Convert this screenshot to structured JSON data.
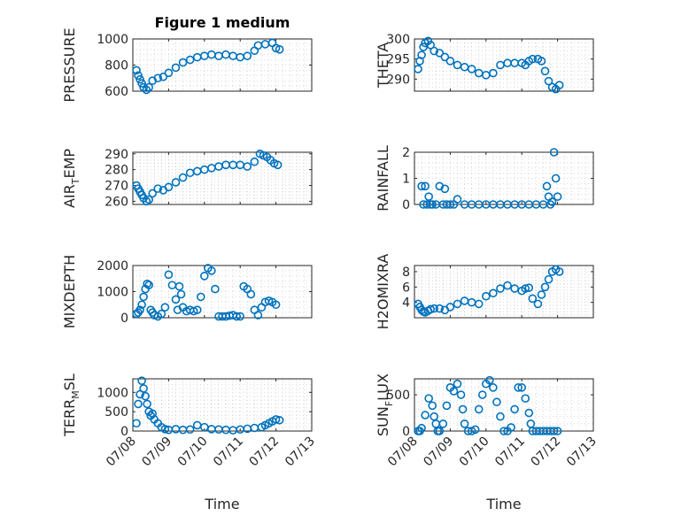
{
  "title": "Figure 1 medium",
  "colors": {
    "series": "#0072bd",
    "axis": "#262626"
  },
  "chart_data": [
    {
      "type": "scatter",
      "ylabel_main": "PRESSURE",
      "ylabel_sub": "",
      "ylabel_end": "",
      "ylim": [
        600,
        1000
      ],
      "yticks": [
        600,
        800,
        1000
      ],
      "xlim": [
        0,
        5
      ],
      "x": [
        0.1,
        0.15,
        0.2,
        0.25,
        0.3,
        0.38,
        0.45,
        0.55,
        0.7,
        0.85,
        1.0,
        1.2,
        1.4,
        1.6,
        1.8,
        2.0,
        2.2,
        2.4,
        2.6,
        2.8,
        3.0,
        3.2,
        3.4,
        3.5,
        3.7,
        3.9,
        4.0,
        4.1
      ],
      "y": [
        760,
        720,
        690,
        660,
        630,
        610,
        630,
        680,
        700,
        710,
        740,
        780,
        820,
        840,
        860,
        870,
        880,
        870,
        880,
        870,
        860,
        870,
        910,
        950,
        960,
        970,
        930,
        920
      ],
      "grid": true
    },
    {
      "type": "scatter",
      "ylabel_main": "THETA",
      "ylabel_sub": "",
      "ylabel_end": "",
      "ylim": [
        287,
        300
      ],
      "yticks": [
        290,
        295,
        300
      ],
      "xlim": [
        0,
        5
      ],
      "x": [
        0.1,
        0.15,
        0.2,
        0.25,
        0.3,
        0.38,
        0.45,
        0.55,
        0.7,
        0.85,
        1.0,
        1.2,
        1.4,
        1.6,
        1.8,
        2.0,
        2.2,
        2.4,
        2.6,
        2.8,
        3.0,
        3.1,
        3.2,
        3.3,
        3.45,
        3.55,
        3.65,
        3.75,
        3.85,
        3.95,
        4.05
      ],
      "y": [
        292.5,
        294.5,
        296,
        298,
        299,
        299.5,
        298.5,
        297,
        296.5,
        295.5,
        294.5,
        293.5,
        293,
        292.5,
        291.5,
        291,
        291.5,
        293.5,
        294,
        294,
        294,
        293.5,
        294.5,
        295,
        295,
        294.5,
        292,
        289.5,
        288,
        287.5,
        288.5
      ],
      "grid": true
    },
    {
      "type": "scatter",
      "ylabel_main": "AIR",
      "ylabel_sub": "T",
      "ylabel_end": "EMP",
      "ylim": [
        258,
        291
      ],
      "yticks": [
        260,
        270,
        280,
        290
      ],
      "xlim": [
        0,
        5
      ],
      "x": [
        0.1,
        0.15,
        0.2,
        0.25,
        0.3,
        0.38,
        0.45,
        0.55,
        0.7,
        0.85,
        1.0,
        1.2,
        1.4,
        1.6,
        1.8,
        2.0,
        2.2,
        2.4,
        2.6,
        2.8,
        3.0,
        3.2,
        3.4,
        3.55,
        3.65,
        3.75,
        3.85,
        3.95,
        4.05
      ],
      "y": [
        270,
        268,
        266,
        264,
        262,
        260,
        261,
        265,
        268,
        267,
        269,
        272,
        275,
        278,
        279,
        280,
        281,
        282,
        283,
        283,
        283,
        282,
        285,
        290,
        289,
        288,
        286,
        284,
        283
      ],
      "grid": true
    },
    {
      "type": "scatter",
      "ylabel_main": "RAINFALL",
      "ylabel_sub": "",
      "ylabel_end": "",
      "ylim": [
        0,
        2
      ],
      "yticks": [
        0,
        1,
        2
      ],
      "xlim": [
        0,
        5
      ],
      "x": [
        0.2,
        0.25,
        0.3,
        0.35,
        0.4,
        0.45,
        0.5,
        0.6,
        0.7,
        0.8,
        0.85,
        0.9,
        1.0,
        1.1,
        1.2,
        1.4,
        1.6,
        1.8,
        2.0,
        2.2,
        2.4,
        2.6,
        2.8,
        3.0,
        3.2,
        3.4,
        3.6,
        3.7,
        3.75,
        3.8,
        3.85,
        3.9,
        3.95,
        4.0
      ],
      "y": [
        0.7,
        0,
        0.7,
        0,
        0.3,
        0,
        0,
        0,
        0.7,
        0,
        0.6,
        0,
        0,
        0,
        0.2,
        0,
        0,
        0,
        0,
        0,
        0,
        0,
        0,
        0,
        0,
        0,
        0,
        0.7,
        0.3,
        0,
        0.1,
        2.0,
        1.0,
        0.3
      ],
      "grid": true
    },
    {
      "type": "scatter",
      "ylabel_main": "MIXDEPTH",
      "ylabel_sub": "",
      "ylabel_end": "",
      "ylim": [
        0,
        2000
      ],
      "yticks": [
        0,
        1000,
        2000
      ],
      "xlim": [
        0,
        5
      ],
      "x": [
        0.1,
        0.15,
        0.2,
        0.25,
        0.3,
        0.35,
        0.4,
        0.45,
        0.5,
        0.55,
        0.6,
        0.7,
        0.8,
        0.9,
        1.0,
        1.1,
        1.2,
        1.25,
        1.3,
        1.35,
        1.4,
        1.5,
        1.6,
        1.7,
        1.8,
        1.9,
        2.0,
        2.1,
        2.2,
        2.3,
        2.4,
        2.5,
        2.6,
        2.7,
        2.8,
        2.9,
        3.0,
        3.1,
        3.2,
        3.3,
        3.4,
        3.5,
        3.6,
        3.7,
        3.8,
        3.9,
        4.0
      ],
      "y": [
        150,
        200,
        300,
        500,
        800,
        1100,
        1300,
        1250,
        300,
        200,
        100,
        50,
        150,
        400,
        1650,
        1250,
        700,
        300,
        1200,
        900,
        400,
        250,
        300,
        250,
        300,
        800,
        1600,
        1900,
        1800,
        1100,
        50,
        50,
        50,
        80,
        100,
        50,
        50,
        1200,
        1100,
        900,
        300,
        100,
        400,
        600,
        650,
        600,
        500
      ],
      "grid": true
    },
    {
      "type": "scatter",
      "ylabel_main": "H2OMIXRA",
      "ylabel_sub": "",
      "ylabel_end": "",
      "ylim": [
        2,
        8.8
      ],
      "yticks": [
        4,
        6,
        8
      ],
      "xlim": [
        0,
        5
      ],
      "x": [
        0.1,
        0.15,
        0.2,
        0.25,
        0.3,
        0.38,
        0.45,
        0.55,
        0.7,
        0.85,
        1.0,
        1.2,
        1.4,
        1.6,
        1.8,
        2.0,
        2.2,
        2.4,
        2.6,
        2.8,
        3.0,
        3.1,
        3.2,
        3.3,
        3.45,
        3.55,
        3.65,
        3.75,
        3.85,
        3.95,
        4.05
      ],
      "y": [
        3.8,
        3.4,
        3.0,
        2.8,
        2.7,
        2.9,
        3.1,
        3.2,
        3.2,
        3.0,
        3.4,
        3.8,
        4.2,
        4.0,
        3.8,
        4.8,
        5.2,
        5.8,
        6.2,
        5.8,
        5.5,
        5.8,
        5.9,
        4.5,
        3.8,
        5.0,
        6.0,
        7.0,
        8.0,
        8.3,
        8.0
      ],
      "grid": true
    },
    {
      "type": "scatter",
      "ylabel_main": "TERR",
      "ylabel_sub": "M",
      "ylabel_end": "SL",
      "ylim": [
        0,
        1350
      ],
      "yticks": [
        0,
        500,
        1000
      ],
      "xlim": [
        0,
        5
      ],
      "x": [
        0.1,
        0.15,
        0.2,
        0.25,
        0.3,
        0.35,
        0.4,
        0.45,
        0.5,
        0.55,
        0.6,
        0.7,
        0.8,
        0.9,
        1.0,
        1.2,
        1.4,
        1.6,
        1.8,
        2.0,
        2.2,
        2.4,
        2.6,
        2.8,
        3.0,
        3.2,
        3.4,
        3.6,
        3.7,
        3.8,
        3.9,
        4.0,
        4.1
      ],
      "y": [
        200,
        700,
        950,
        1300,
        1100,
        900,
        700,
        500,
        400,
        450,
        300,
        200,
        100,
        50,
        30,
        50,
        30,
        40,
        150,
        100,
        50,
        40,
        30,
        20,
        40,
        60,
        80,
        100,
        150,
        200,
        250,
        300,
        280
      ],
      "grid": true
    },
    {
      "type": "scatter",
      "ylabel_main": "SUN",
      "ylabel_sub": "F",
      "ylabel_end": "LUX",
      "ylim": [
        0,
        720
      ],
      "yticks": [
        0,
        500
      ],
      "xlim": [
        0,
        5
      ],
      "x": [
        0.1,
        0.15,
        0.2,
        0.3,
        0.4,
        0.5,
        0.55,
        0.6,
        0.65,
        0.7,
        0.8,
        0.9,
        1.0,
        1.1,
        1.2,
        1.3,
        1.35,
        1.4,
        1.5,
        1.6,
        1.7,
        1.8,
        1.9,
        2.0,
        2.1,
        2.2,
        2.3,
        2.4,
        2.5,
        2.6,
        2.7,
        2.8,
        2.9,
        3.0,
        3.1,
        3.2,
        3.25,
        3.3,
        3.4,
        3.5,
        3.6,
        3.7,
        3.8,
        3.9,
        4.0
      ],
      "y": [
        0,
        0,
        40,
        220,
        450,
        350,
        200,
        100,
        0,
        0,
        100,
        350,
        600,
        550,
        650,
        500,
        300,
        100,
        0,
        0,
        20,
        300,
        500,
        650,
        700,
        600,
        400,
        200,
        0,
        0,
        50,
        300,
        600,
        600,
        450,
        250,
        100,
        0,
        0,
        0,
        0,
        0,
        0,
        0,
        0
      ],
      "grid": true
    }
  ],
  "x_axis": {
    "ticks": [
      0,
      1,
      2,
      3,
      4,
      5
    ],
    "tick_labels": [
      "07/08",
      "07/09",
      "07/10",
      "07/11",
      "07/12",
      "07/13"
    ],
    "label": "Time"
  }
}
